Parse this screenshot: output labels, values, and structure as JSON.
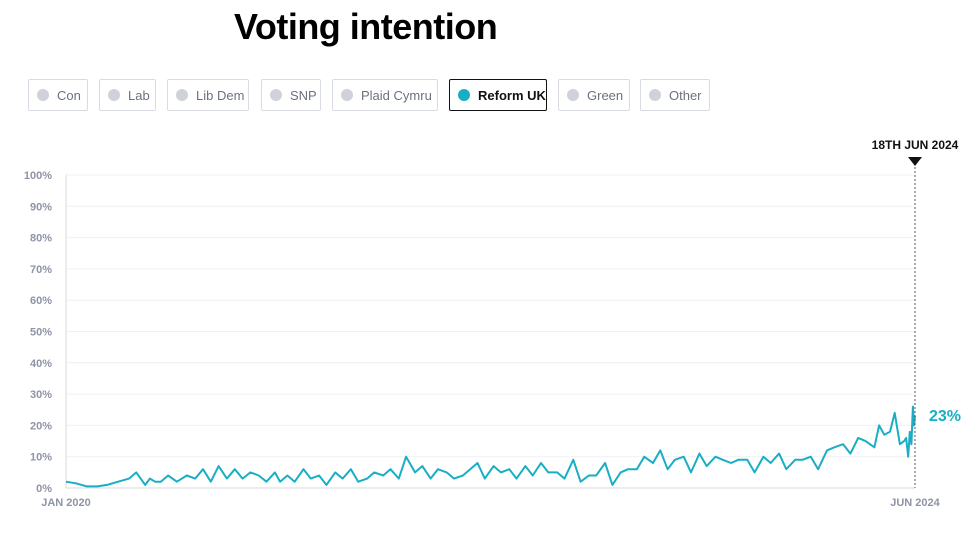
{
  "title": "Voting intention",
  "filters": [
    {
      "label": "Con",
      "active": false
    },
    {
      "label": "Lab",
      "active": false
    },
    {
      "label": "Lib Dem",
      "active": false
    },
    {
      "label": "SNP",
      "active": false
    },
    {
      "label": "Plaid Cymru",
      "active": false
    },
    {
      "label": "Reform UK",
      "active": true
    },
    {
      "label": "Green",
      "active": false
    },
    {
      "label": "Other",
      "active": false
    }
  ],
  "colors": {
    "series": "#1aaec4",
    "inactive_dot": "#d0d2db",
    "grid": "#eef0f4",
    "axis_text": "#8f94a6"
  },
  "chart_data": {
    "type": "line",
    "ytick_labels": [
      "0%",
      "10%",
      "20%",
      "30%",
      "40%",
      "50%",
      "60%",
      "70%",
      "80%",
      "90%",
      "100%"
    ],
    "ylim": [
      0,
      100
    ],
    "xlim": [
      "2020-01-01",
      "2024-06-18"
    ],
    "x_labels": [
      "JAN 2020",
      "JUN 2024"
    ],
    "marker_label": "18TH JUN 2024",
    "end_label": "23%",
    "grid": true,
    "series": [
      {
        "name": "Reform UK",
        "x": [
          "2020-01-01",
          "2020-01-20",
          "2020-02-10",
          "2020-03-01",
          "2020-03-20",
          "2020-04-10",
          "2020-05-01",
          "2020-05-15",
          "2020-06-01",
          "2020-06-10",
          "2020-06-20",
          "2020-07-01",
          "2020-07-15",
          "2020-08-01",
          "2020-08-20",
          "2020-09-05",
          "2020-09-20",
          "2020-10-05",
          "2020-10-20",
          "2020-11-05",
          "2020-11-20",
          "2020-12-05",
          "2020-12-20",
          "2021-01-05",
          "2021-01-20",
          "2021-02-05",
          "2021-02-15",
          "2021-03-01",
          "2021-03-15",
          "2021-04-01",
          "2021-04-15",
          "2021-05-01",
          "2021-05-15",
          "2021-06-01",
          "2021-06-15",
          "2021-07-01",
          "2021-07-15",
          "2021-08-01",
          "2021-08-15",
          "2021-09-01",
          "2021-09-15",
          "2021-10-01",
          "2021-10-15",
          "2021-11-01",
          "2021-11-15",
          "2021-12-01",
          "2021-12-15",
          "2022-01-01",
          "2022-01-15",
          "2022-02-01",
          "2022-02-15",
          "2022-03-01",
          "2022-03-15",
          "2022-04-01",
          "2022-04-15",
          "2022-05-01",
          "2022-05-15",
          "2022-06-01",
          "2022-06-15",
          "2022-07-01",
          "2022-07-15",
          "2022-08-01",
          "2022-08-15",
          "2022-09-01",
          "2022-09-15",
          "2022-10-01",
          "2022-10-15",
          "2022-11-01",
          "2022-11-15",
          "2022-12-01",
          "2022-12-15",
          "2023-01-01",
          "2023-01-15",
          "2023-02-01",
          "2023-02-15",
          "2023-03-01",
          "2023-03-15",
          "2023-04-01",
          "2023-04-15",
          "2023-05-01",
          "2023-05-15",
          "2023-06-01",
          "2023-06-15",
          "2023-07-01",
          "2023-07-15",
          "2023-08-01",
          "2023-08-15",
          "2023-09-01",
          "2023-09-15",
          "2023-10-01",
          "2023-10-15",
          "2023-11-01",
          "2023-11-15",
          "2023-12-01",
          "2023-12-15",
          "2024-01-01",
          "2024-01-15",
          "2024-02-01",
          "2024-02-15",
          "2024-03-01",
          "2024-03-15",
          "2024-04-01",
          "2024-04-10",
          "2024-04-20",
          "2024-05-01",
          "2024-05-10",
          "2024-05-20",
          "2024-05-28",
          "2024-06-01",
          "2024-06-05",
          "2024-06-08",
          "2024-06-11",
          "2024-06-14",
          "2024-06-16",
          "2024-06-18"
        ],
        "y": [
          2,
          1.5,
          0.5,
          0.5,
          1,
          2,
          3,
          5,
          1,
          3,
          2,
          2,
          4,
          2,
          4,
          3,
          6,
          2,
          7,
          3,
          6,
          3,
          5,
          4,
          2,
          5,
          2,
          4,
          2,
          6,
          3,
          4,
          1,
          5,
          3,
          6,
          2,
          3,
          5,
          4,
          6,
          3,
          10,
          5,
          7,
          3,
          6,
          5,
          3,
          4,
          6,
          8,
          3,
          7,
          5,
          6,
          3,
          7,
          4,
          8,
          5,
          5,
          3,
          9,
          2,
          4,
          4,
          8,
          1,
          5,
          6,
          6,
          10,
          8,
          12,
          6,
          9,
          10,
          5,
          11,
          7,
          10,
          9,
          8,
          9,
          9,
          5,
          10,
          8,
          11,
          6,
          9,
          9,
          10,
          6,
          12,
          13,
          14,
          11,
          16,
          15,
          13,
          20,
          17,
          18,
          24,
          14,
          15,
          16,
          10,
          18,
          14,
          26,
          20,
          23
        ]
      }
    ]
  }
}
